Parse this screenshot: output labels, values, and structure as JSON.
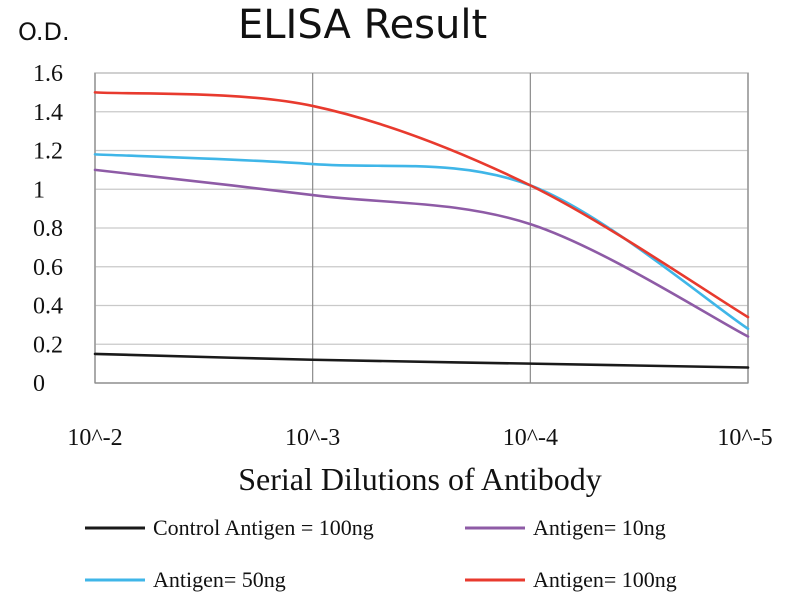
{
  "chart_data": {
    "type": "line",
    "title": "ELISA Result",
    "ylabel": "O.D.",
    "xlabel": "Serial Dilutions of Antibody",
    "x_ticks": [
      "10^-2",
      "10^-3",
      "10^-4",
      "10^-5"
    ],
    "y_ticks": [
      "0",
      "0.2",
      "0.4",
      "0.6",
      "0.8",
      "1",
      "1.2",
      "1.4",
      "1.6"
    ],
    "ylim": [
      0,
      1.6
    ],
    "grid": true,
    "legend_position": "bottom",
    "series": [
      {
        "name": "Control Antigen = 100ng",
        "color": "#1a1a1a",
        "x": [
          "10^-2",
          "10^-3",
          "10^-4",
          "10^-5"
        ],
        "values": [
          0.15,
          0.12,
          0.1,
          0.08
        ]
      },
      {
        "name": "Antigen= 10ng",
        "color": "#8e5ba6",
        "x": [
          "10^-2",
          "10^-3",
          "10^-4",
          "10^-5"
        ],
        "values": [
          1.1,
          0.97,
          0.82,
          0.24
        ]
      },
      {
        "name": "Antigen= 50ng",
        "color": "#3fb6e8",
        "x": [
          "10^-2",
          "10^-3",
          "10^-4",
          "10^-5"
        ],
        "values": [
          1.18,
          1.13,
          1.02,
          0.28
        ]
      },
      {
        "name": "Antigen= 100ng",
        "color": "#e83a2e",
        "x": [
          "10^-2",
          "10^-3",
          "10^-4",
          "10^-5"
        ],
        "values": [
          1.5,
          1.43,
          1.02,
          0.34
        ]
      }
    ]
  }
}
